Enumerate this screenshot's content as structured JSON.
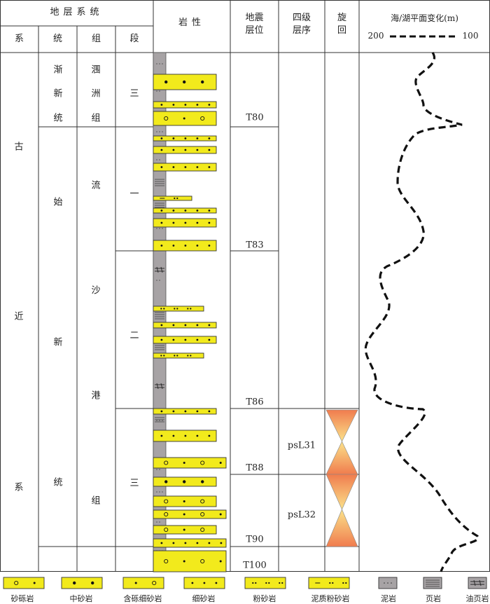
{
  "header": {
    "strat_system": "地层系统",
    "col_xi": "系",
    "col_tong": "统",
    "col_zu": "组",
    "col_duan": "段",
    "lithology": "岩性",
    "seismic_1": "地震",
    "seismic_2": "层位",
    "fourth_1": "四级",
    "fourth_2": "层序",
    "cycle_1": "旋",
    "cycle_2": "回",
    "sea_level_title": "海/湖平面变化(m)",
    "sea_level_left": "200",
    "sea_level_right": "100"
  },
  "xi": [
    "古",
    "近",
    "系"
  ],
  "tong_upper": [
    "渐",
    "新",
    "统"
  ],
  "tong_lower": [
    "始",
    "新",
    "统"
  ],
  "zu_upper": [
    "涠",
    "洲",
    "组"
  ],
  "zu_lower": [
    "流",
    "沙",
    "港",
    "组"
  ],
  "duan": [
    "三",
    "一",
    "二",
    "三"
  ],
  "seismic_horizons": [
    "T80",
    "T83",
    "T86",
    "T88",
    "T90",
    "T100"
  ],
  "sequences": [
    "psL31",
    "psL32"
  ],
  "legend": [
    "砂砾岩",
    "中砂岩",
    "含砾细砂岩",
    "细砂岩",
    "粉砂岩",
    "泥质粉砂岩",
    "泥岩",
    "页岩",
    "油页岩"
  ],
  "colors": {
    "sandstone_yellow": "#f2ea1c",
    "mudstone_gray": "#a7a3a5",
    "cycle_orange": "#f07c4e",
    "cycle_yellow": "#fbe28a"
  }
}
